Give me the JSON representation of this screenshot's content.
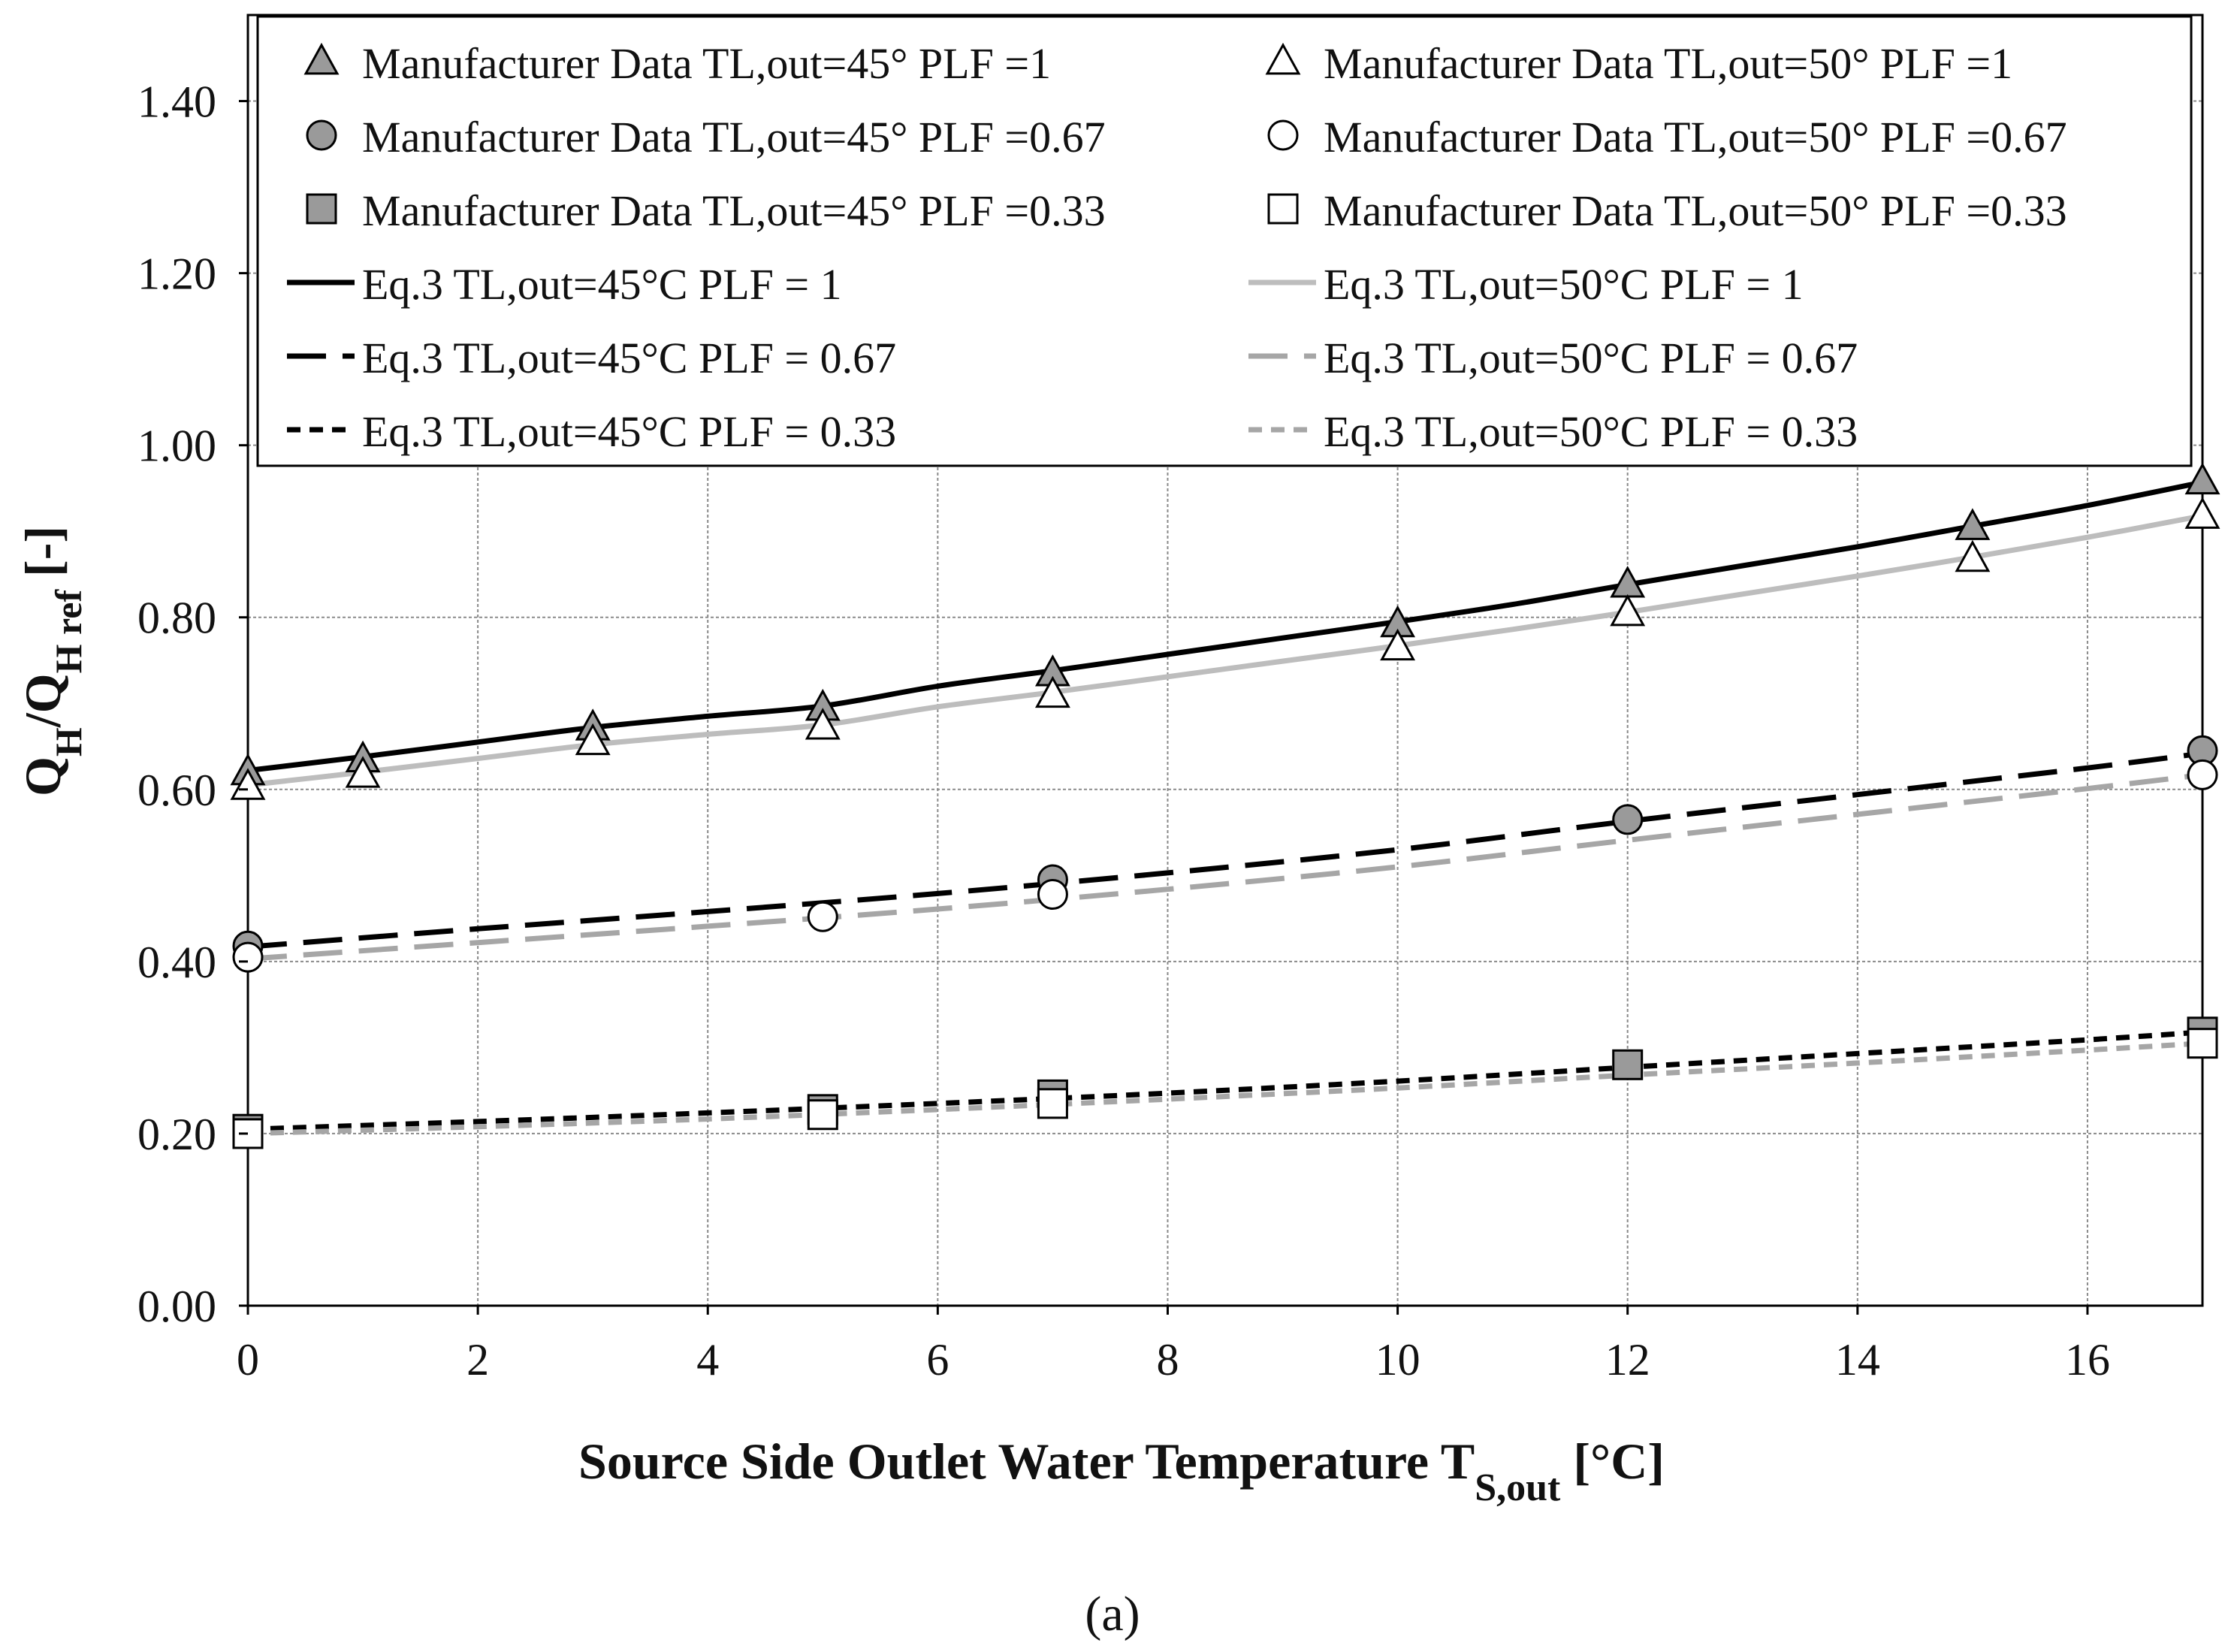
{
  "chart_data": {
    "type": "line",
    "title": "",
    "caption": "(a)",
    "xlabel": {
      "main": "Source Side Outlet Water Temperature T",
      "subscript": "S,out",
      "unit": " [°C]"
    },
    "ylabel": {
      "q1": "Q",
      "q1_sub": "H",
      "slash": "/Q",
      "q2_sub": "H ref",
      "unit": " [-]"
    },
    "xlim": [
      0,
      17
    ],
    "ylim": [
      0,
      1.5
    ],
    "x_ticks": [
      0,
      2,
      4,
      6,
      8,
      10,
      12,
      14,
      16
    ],
    "x_tick_labels": [
      "0",
      "2",
      "4",
      "6",
      "8",
      "10",
      "12",
      "14",
      "16"
    ],
    "y_ticks": [
      0,
      0.2,
      0.4,
      0.6,
      0.8,
      1.0,
      1.2,
      1.4
    ],
    "y_tick_labels": [
      "0.00",
      "0.20",
      "0.40",
      "0.60",
      "0.80",
      "1.00",
      "1.20",
      "1.40"
    ],
    "grid": true,
    "legend_position": "top",
    "markers": [
      {
        "name": "Manufacturer Data TL,out=45° PLF =1",
        "shape": "triangle",
        "fill": "#9a9a9a",
        "points": [
          [
            0,
            0.62
          ],
          [
            1,
            0.635
          ],
          [
            3,
            0.672
          ],
          [
            5,
            0.695
          ],
          [
            7,
            0.735
          ],
          [
            10,
            0.792
          ],
          [
            12,
            0.838
          ],
          [
            15,
            0.905
          ],
          [
            17,
            0.958
          ]
        ]
      },
      {
        "name": "Manufacturer Data TL,out=50° PLF =1",
        "shape": "triangle",
        "fill": "#ffffff",
        "points": [
          [
            0,
            0.603
          ],
          [
            1,
            0.617
          ],
          [
            3,
            0.655
          ],
          [
            5,
            0.673
          ],
          [
            7,
            0.71
          ],
          [
            10,
            0.765
          ],
          [
            12,
            0.805
          ],
          [
            15,
            0.868
          ],
          [
            17,
            0.918
          ]
        ]
      },
      {
        "name": "Manufacturer Data TL,out=45° PLF =0.67",
        "shape": "circle",
        "fill": "#9a9a9a",
        "points": [
          [
            0,
            0.418
          ],
          [
            7,
            0.495
          ],
          [
            12,
            0.565
          ],
          [
            17,
            0.645
          ]
        ]
      },
      {
        "name": "Manufacturer Data TL,out=50° PLF =0.67",
        "shape": "circle",
        "fill": "#ffffff",
        "points": [
          [
            0,
            0.405
          ],
          [
            5,
            0.452
          ],
          [
            7,
            0.478
          ],
          [
            17,
            0.617
          ]
        ]
      },
      {
        "name": "Manufacturer Data TL,out=45° PLF =0.33",
        "shape": "square",
        "fill": "#9a9a9a",
        "points": [
          [
            0,
            0.205
          ],
          [
            5,
            0.228
          ],
          [
            7,
            0.245
          ],
          [
            12,
            0.28
          ],
          [
            17,
            0.318
          ]
        ]
      },
      {
        "name": "Manufacturer Data TL,out=50° PLF =0.33",
        "shape": "square",
        "fill": "#ffffff",
        "points": [
          [
            0,
            0.2
          ],
          [
            5,
            0.222
          ],
          [
            7,
            0.235
          ],
          [
            17,
            0.305
          ]
        ]
      }
    ],
    "lines": [
      {
        "name": "Eq.3 TL,out=45°C PLF = 1",
        "color": "#000000",
        "dash": "solid",
        "points": [
          [
            0,
            0.622
          ],
          [
            1,
            0.638
          ],
          [
            2,
            0.655
          ],
          [
            3,
            0.672
          ],
          [
            4,
            0.685
          ],
          [
            5,
            0.697
          ],
          [
            6,
            0.72
          ],
          [
            7,
            0.738
          ],
          [
            8,
            0.757
          ],
          [
            9,
            0.776
          ],
          [
            10,
            0.795
          ],
          [
            11,
            0.815
          ],
          [
            12,
            0.838
          ],
          [
            13,
            0.86
          ],
          [
            14,
            0.882
          ],
          [
            15,
            0.906
          ],
          [
            16,
            0.93
          ],
          [
            17,
            0.957
          ]
        ]
      },
      {
        "name": "Eq.3 TL,out=50°C PLF = 1",
        "color": "#bdbdbd",
        "dash": "solid",
        "points": [
          [
            0,
            0.605
          ],
          [
            1,
            0.62
          ],
          [
            2,
            0.636
          ],
          [
            3,
            0.652
          ],
          [
            4,
            0.664
          ],
          [
            5,
            0.675
          ],
          [
            6,
            0.696
          ],
          [
            7,
            0.713
          ],
          [
            8,
            0.731
          ],
          [
            9,
            0.749
          ],
          [
            10,
            0.767
          ],
          [
            11,
            0.786
          ],
          [
            12,
            0.806
          ],
          [
            13,
            0.827
          ],
          [
            14,
            0.848
          ],
          [
            15,
            0.87
          ],
          [
            16,
            0.893
          ],
          [
            17,
            0.918
          ]
        ]
      },
      {
        "name": "Eq.3 TL,out=45°C PLF = 0.67",
        "color": "#000000",
        "dash": "long",
        "points": [
          [
            0,
            0.417
          ],
          [
            2,
            0.438
          ],
          [
            4,
            0.458
          ],
          [
            6,
            0.479
          ],
          [
            8,
            0.503
          ],
          [
            10,
            0.53
          ],
          [
            12,
            0.563
          ],
          [
            14,
            0.594
          ],
          [
            16,
            0.625
          ],
          [
            17,
            0.642
          ]
        ]
      },
      {
        "name": "Eq.3 TL,out=50°C PLF = 0.67",
        "color": "#a6a6a6",
        "dash": "long",
        "points": [
          [
            0,
            0.403
          ],
          [
            2,
            0.422
          ],
          [
            4,
            0.441
          ],
          [
            6,
            0.461
          ],
          [
            8,
            0.484
          ],
          [
            10,
            0.51
          ],
          [
            12,
            0.541
          ],
          [
            14,
            0.571
          ],
          [
            16,
            0.601
          ],
          [
            17,
            0.617
          ]
        ]
      },
      {
        "name": "Eq.3 TL,out=45°C PLF = 0.33",
        "color": "#000000",
        "dash": "short",
        "points": [
          [
            0,
            0.205
          ],
          [
            2,
            0.214
          ],
          [
            4,
            0.224
          ],
          [
            6,
            0.235
          ],
          [
            8,
            0.247
          ],
          [
            10,
            0.261
          ],
          [
            12,
            0.277
          ],
          [
            14,
            0.293
          ],
          [
            16,
            0.309
          ],
          [
            17,
            0.318
          ]
        ]
      },
      {
        "name": "Eq.3 TL,out=50°C PLF = 0.33",
        "color": "#a6a6a6",
        "dash": "short",
        "points": [
          [
            0,
            0.2
          ],
          [
            2,
            0.208
          ],
          [
            4,
            0.217
          ],
          [
            6,
            0.228
          ],
          [
            8,
            0.24
          ],
          [
            10,
            0.253
          ],
          [
            12,
            0.268
          ],
          [
            14,
            0.282
          ],
          [
            16,
            0.297
          ],
          [
            17,
            0.305
          ]
        ]
      }
    ]
  }
}
